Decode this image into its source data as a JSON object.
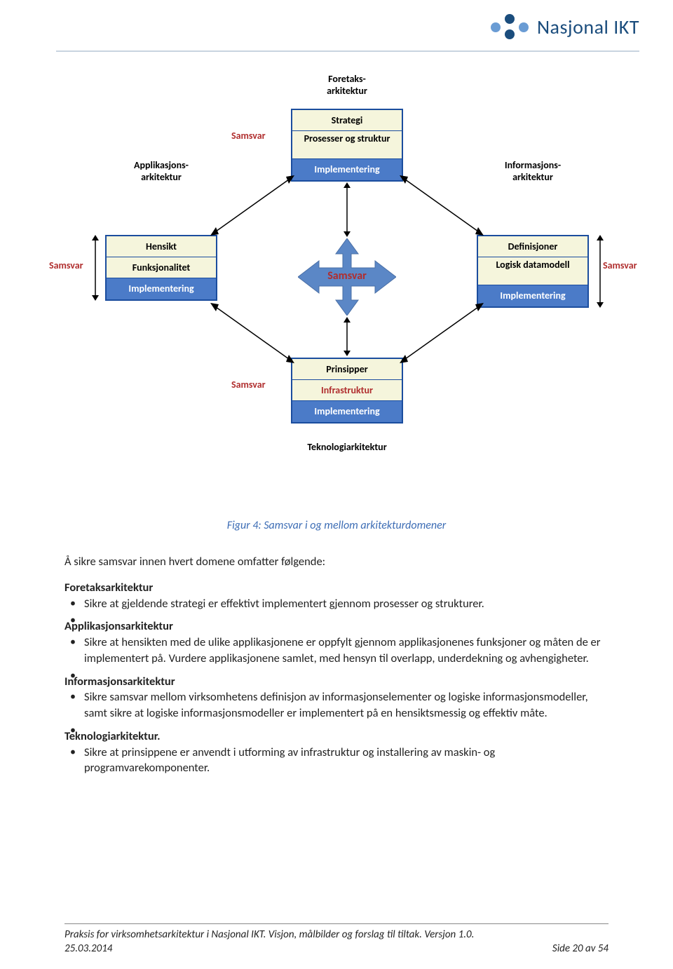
{
  "logo": {
    "text": "Nasjonal IKT",
    "dot_color_light": "#6a9cd4",
    "dot_color_dark": "#1b4d7d"
  },
  "diagram": {
    "top_label": "Foretaks-\narkitektur",
    "top_box": {
      "r1": "Strategi",
      "r2": "Prosesser og struktur",
      "r3": "Implementering"
    },
    "left_label": "Applikasjons-\narkitektur",
    "left_box": {
      "r1": "Hensikt",
      "r2": "Funksjonalitet",
      "r3": "Implementering"
    },
    "right_label": "Informasjons-\narkitektur",
    "right_box": {
      "r1": "Definisjoner",
      "r2": "Logisk datamodell",
      "r3": "Implementering"
    },
    "bottom_box": {
      "r1": "Prinsipper",
      "r2": "Infrastruktur",
      "r3": "Implementering"
    },
    "bottom_label": "Teknologiarkitektur",
    "center_label": "Samsvar",
    "samsvar": "Samsvar",
    "colors": {
      "box_border": "#1b4d9e",
      "box_fill": "#f5f5dc",
      "blue_fill": "#4b7bc8",
      "red_text": "#b02e2e",
      "cross_fill": "#5b87c6"
    }
  },
  "caption": "Figur 4: Samsvar i og mellom arkitekturdomener",
  "body": {
    "intro": "Å sikre samsvar innen hvert domene omfatter følgende:",
    "sections": [
      {
        "title": "Foretaksarkitektur",
        "items": [
          "Sikre at gjeldende strategi er effektivt implementert gjennom prosesser og strukturer."
        ]
      },
      {
        "title": "Applikasjonsarkitektur",
        "items": [
          "Sikre at hensikten med de ulike applikasjonene er oppfylt gjennom applikasjonenes funksjoner og måten de er implementert på. Vurdere applikasjonene samlet, med hensyn til overlapp, underdekning og avhengigheter."
        ]
      },
      {
        "title": "Informasjonsarkitektur",
        "items": [
          "Sikre samsvar mellom virksomhetens definisjon av informasjonselementer og logiske informasjonsmodeller, samt sikre at logiske informasjonsmodeller er implementert på en hensiktsmessig og effektiv måte."
        ]
      },
      {
        "title": "Teknologiarkitektur.",
        "items": [
          "Sikre at prinsippene er anvendt i utforming av infrastruktur og installering av maskin- og programvarekomponenter."
        ]
      }
    ]
  },
  "footer": {
    "line1": "Praksis for virksomhetsarkitektur i Nasjonal IKT.  Visjon, målbilder og forslag til tiltak.  Versjon 1.0.",
    "date": "25.03.2014",
    "page": "Side 20 av 54"
  }
}
